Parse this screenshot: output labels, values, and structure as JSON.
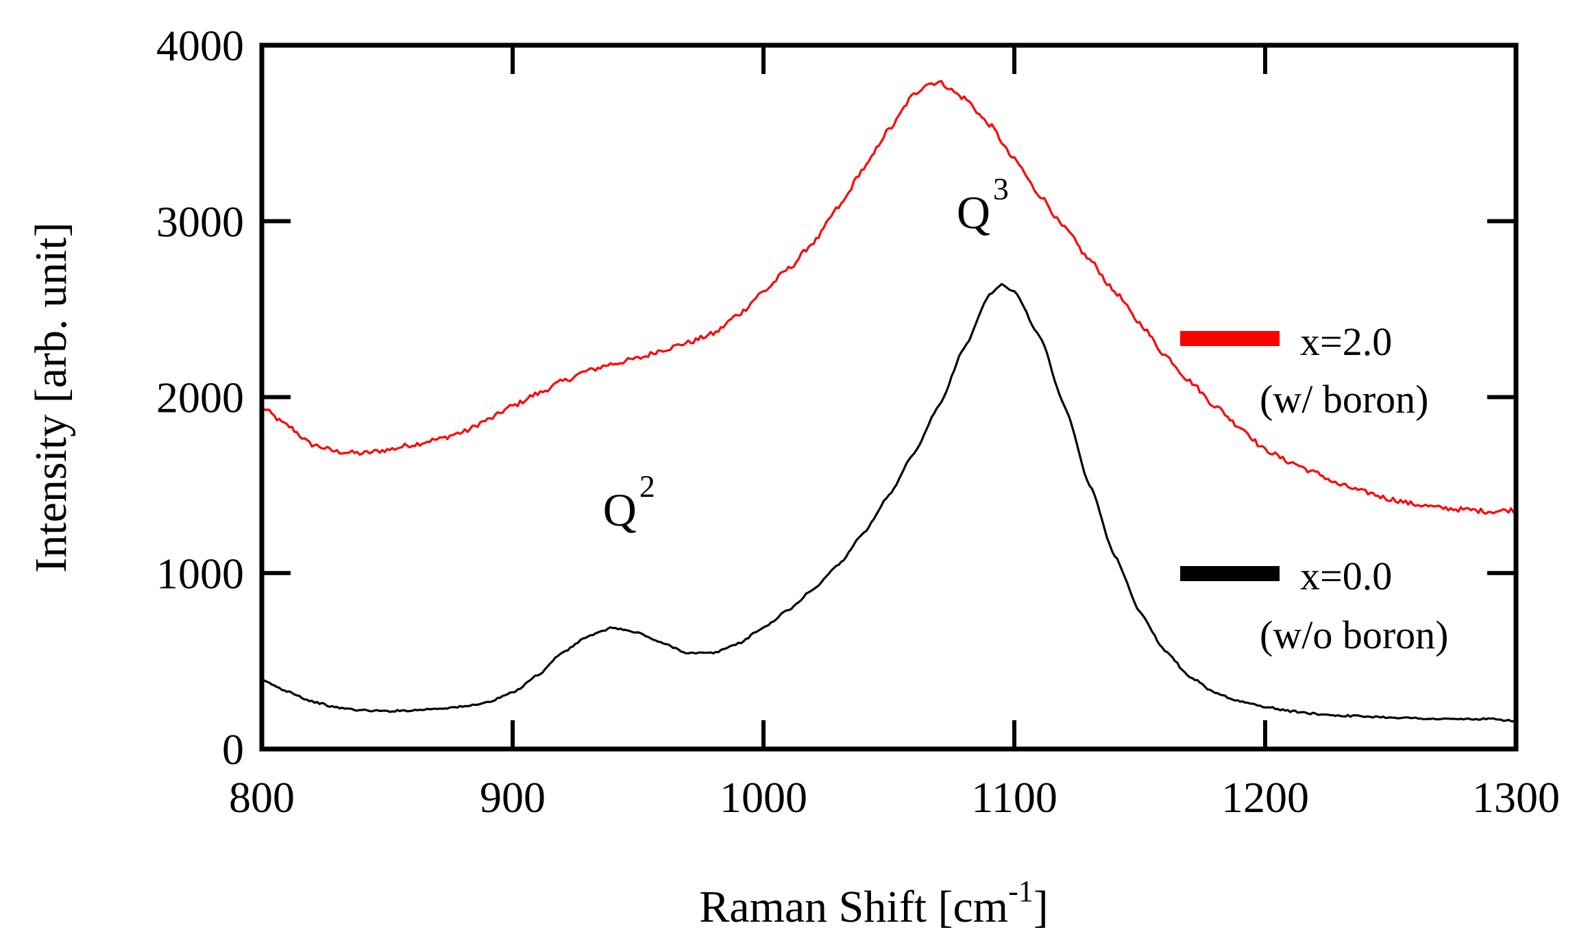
{
  "chart_data": {
    "type": "line",
    "title": "",
    "xlabel": "Raman Shift [cm",
    "xlabel_sup": "-1",
    "xlabel_close": "]",
    "ylabel": "Intensity [arb. unit]",
    "xlim": [
      800,
      1300
    ],
    "ylim": [
      0,
      4000
    ],
    "x_ticks": [
      800,
      900,
      1000,
      1100,
      1200,
      1300
    ],
    "x_tick_labels": [
      "800",
      "900",
      "1000",
      "1100",
      "1200",
      "1300"
    ],
    "y_ticks": [
      0,
      1000,
      2000,
      3000,
      4000
    ],
    "y_tick_labels": [
      "0",
      "1000",
      "2000",
      "3000",
      "4000"
    ],
    "grid": false,
    "legend_position": "right",
    "series": [
      {
        "name": "x=2.0",
        "sublabel": "(w/ boron)",
        "color": "#ff0000",
        "x": [
          800,
          810,
          820,
          830,
          840,
          850,
          860,
          870,
          880,
          890,
          900,
          910,
          920,
          930,
          940,
          950,
          960,
          970,
          980,
          990,
          1000,
          1010,
          1020,
          1030,
          1040,
          1050,
          1060,
          1065,
          1070,
          1080,
          1090,
          1100,
          1110,
          1120,
          1130,
          1140,
          1150,
          1160,
          1170,
          1180,
          1190,
          1200,
          1210,
          1220,
          1230,
          1240,
          1250,
          1260,
          1270,
          1280,
          1290,
          1300
        ],
        "y": [
          1940,
          1840,
          1730,
          1690,
          1680,
          1700,
          1730,
          1760,
          1800,
          1870,
          1950,
          2020,
          2090,
          2150,
          2190,
          2220,
          2270,
          2310,
          2360,
          2470,
          2600,
          2730,
          2880,
          3080,
          3300,
          3520,
          3720,
          3780,
          3790,
          3700,
          3550,
          3350,
          3150,
          2960,
          2780,
          2600,
          2420,
          2240,
          2090,
          1950,
          1830,
          1700,
          1630,
          1570,
          1500,
          1460,
          1420,
          1390,
          1370,
          1360,
          1350,
          1360
        ]
      },
      {
        "name": "x=0.0",
        "sublabel": "(w/o boron)",
        "color": "#000000",
        "x": [
          800,
          810,
          820,
          830,
          840,
          850,
          860,
          870,
          880,
          890,
          900,
          910,
          920,
          930,
          940,
          950,
          960,
          970,
          980,
          990,
          1000,
          1010,
          1020,
          1030,
          1040,
          1050,
          1060,
          1070,
          1080,
          1090,
          1095,
          1100,
          1110,
          1120,
          1130,
          1140,
          1150,
          1160,
          1170,
          1180,
          1190,
          1200,
          1210,
          1220,
          1230,
          1240,
          1250,
          1260,
          1270,
          1280,
          1290,
          1300
        ],
        "y": [
          390,
          330,
          270,
          235,
          220,
          215,
          220,
          230,
          240,
          265,
          320,
          420,
          550,
          640,
          690,
          660,
          600,
          545,
          545,
          600,
          690,
          790,
          910,
          1050,
          1230,
          1440,
          1680,
          1950,
          2280,
          2580,
          2640,
          2600,
          2350,
          1950,
          1500,
          1100,
          780,
          560,
          410,
          320,
          270,
          240,
          215,
          200,
          190,
          185,
          180,
          175,
          170,
          170,
          170,
          160
        ]
      }
    ],
    "annotations": [
      {
        "base": "Q",
        "sup": "2",
        "x": 936,
        "y": 1270
      },
      {
        "base": "Q",
        "sup": "3",
        "x": 1077,
        "y": 2960
      }
    ]
  }
}
